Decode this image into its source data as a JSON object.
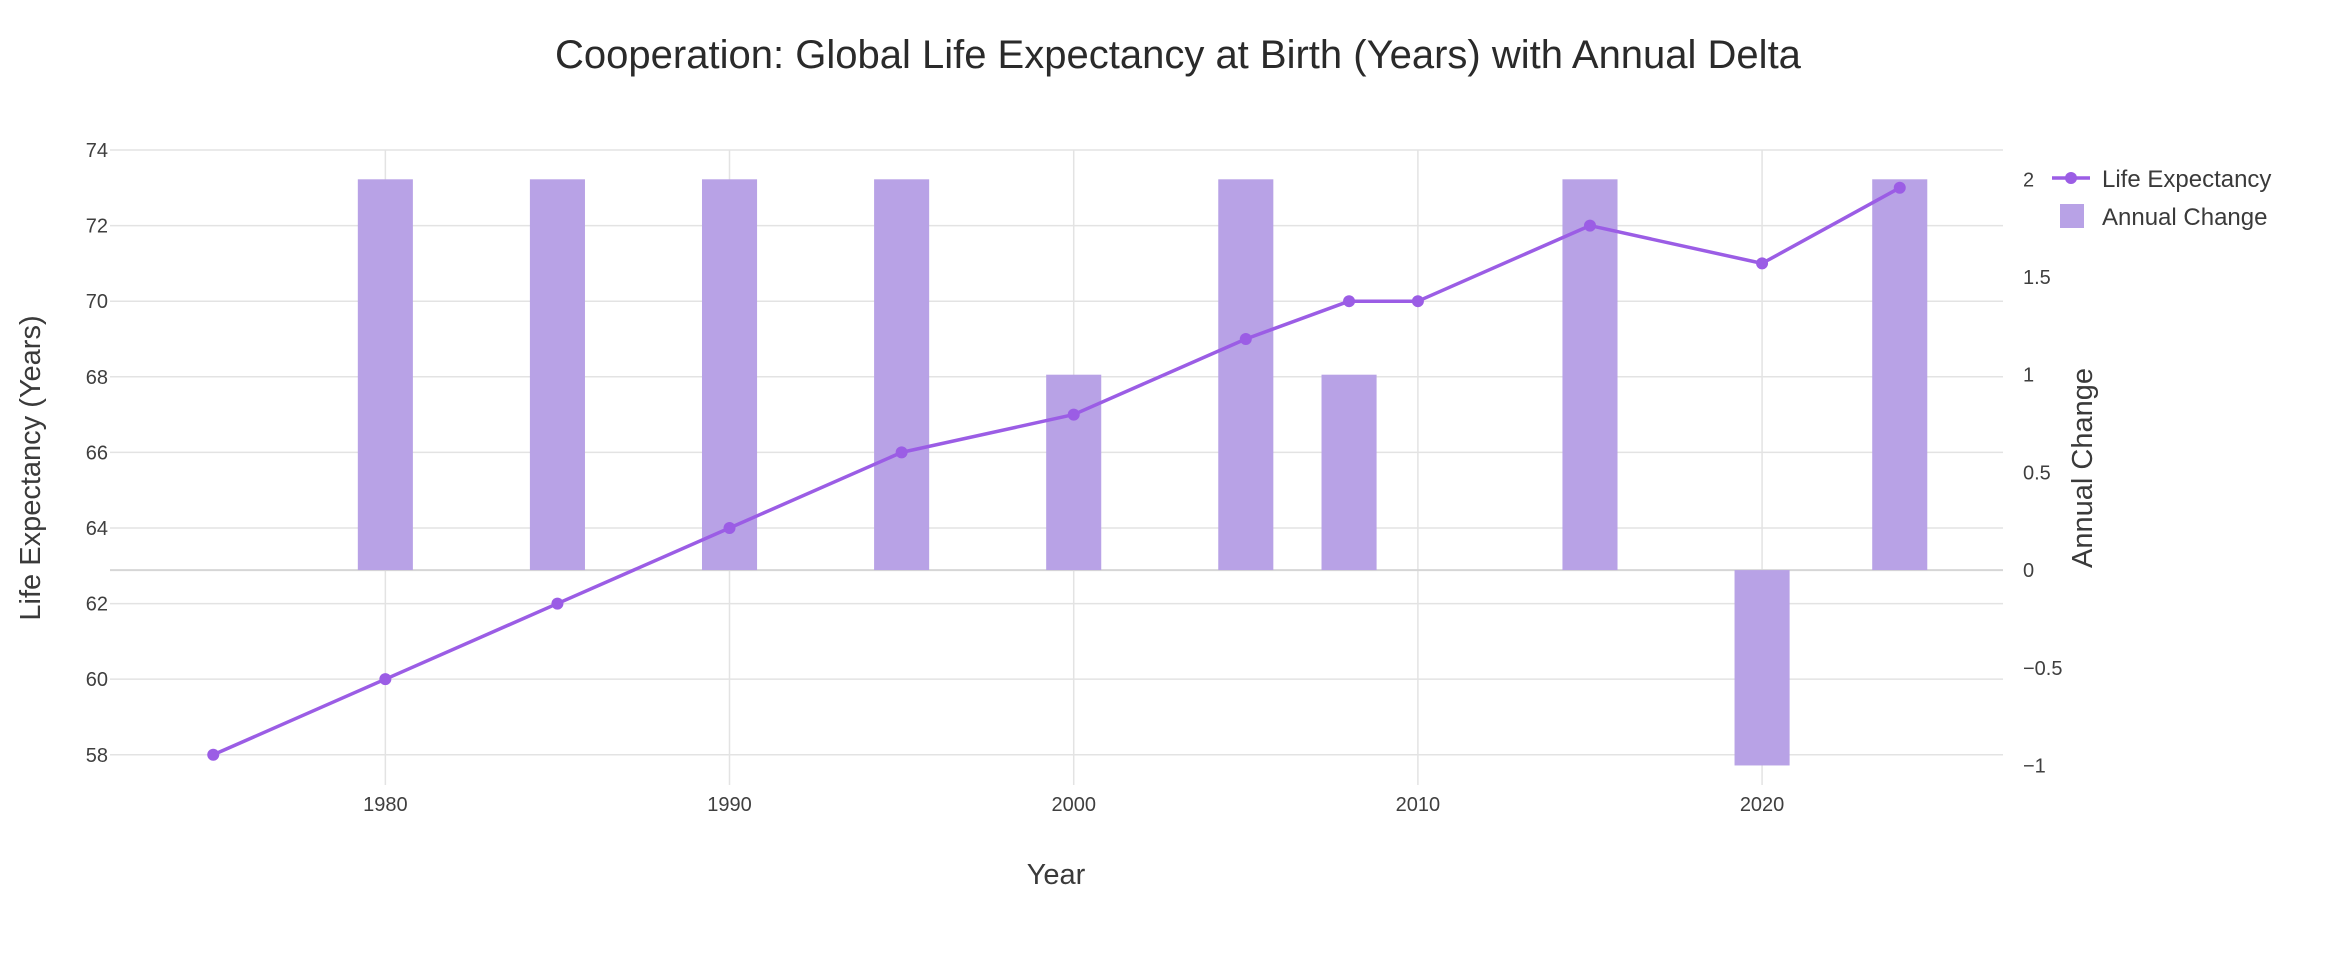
{
  "chart_data": {
    "type": "bar+line",
    "title": "Cooperation: Global Life Expectancy at Birth (Years) with Annual Delta",
    "xlabel": "Year",
    "ylabel_left": "Life Expectancy (Years)",
    "ylabel_right": "Annual Change",
    "xlim": [
      1972,
      2027
    ],
    "ylim_left": [
      57.2,
      74
    ],
    "ylim_right": [
      -1.1,
      2.15
    ],
    "x_ticks": [
      1980,
      1990,
      2000,
      2010,
      2020
    ],
    "y_left_ticks": [
      58,
      60,
      62,
      64,
      66,
      68,
      70,
      72,
      74
    ],
    "y_right_ticks": [
      -1,
      -0.5,
      0,
      0.5,
      1,
      1.5,
      2
    ],
    "y_right_tick_labels": [
      "−1",
      "−0.5",
      "0",
      "0.5",
      "1",
      "1.5",
      "2"
    ],
    "grid": true,
    "legend_position": "top-right",
    "series": [
      {
        "name": "Life Expectancy",
        "kind": "line",
        "axis": "left",
        "color": "#9b5de5",
        "x": [
          1975,
          1980,
          1985,
          1990,
          1995,
          2000,
          2005,
          2008,
          2010,
          2015,
          2020,
          2024
        ],
        "values": [
          58,
          60,
          62,
          64,
          66,
          67,
          69,
          70,
          70,
          72,
          71,
          73
        ]
      },
      {
        "name": "Annual Change",
        "kind": "bar",
        "axis": "right",
        "color": "#b8a2e6",
        "x": [
          1980,
          1985,
          1990,
          1995,
          2000,
          2005,
          2008,
          2015,
          2020,
          2024
        ],
        "values": [
          2,
          2,
          2,
          2,
          1,
          2,
          1,
          2,
          -1,
          2
        ]
      }
    ]
  }
}
